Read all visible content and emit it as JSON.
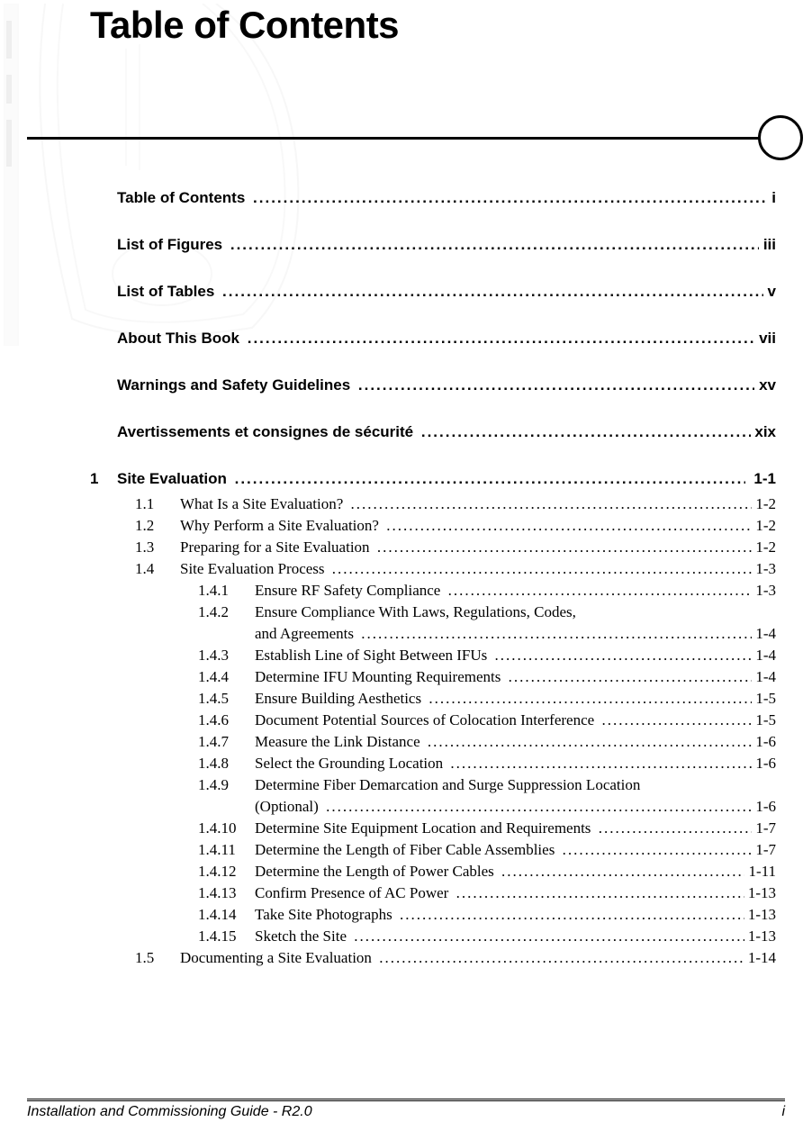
{
  "title": "Table of Contents",
  "front": [
    {
      "label": "Table of Contents",
      "page": "i"
    },
    {
      "label": "List of Figures",
      "page": "iii"
    },
    {
      "label": "List of Tables",
      "page": "v"
    },
    {
      "label": "About This Book",
      "page": "vii"
    },
    {
      "label": "Warnings and Safety Guidelines",
      "page": "xv"
    },
    {
      "label": "Avertissements et consignes de sécurité",
      "page": "xix"
    }
  ],
  "chapter": {
    "num": "1",
    "label": "Site Evaluation",
    "page": "1-1"
  },
  "sections": [
    {
      "num": "1.1",
      "label": "What Is a Site Evaluation?",
      "page": "1-2"
    },
    {
      "num": "1.2",
      "label": "Why Perform a Site Evaluation?",
      "page": "1-2"
    },
    {
      "num": "1.3",
      "label": "Preparing for a Site Evaluation",
      "page": "1-2"
    },
    {
      "num": "1.4",
      "label": "Site Evaluation Process",
      "page": "1-3"
    }
  ],
  "subsections": [
    {
      "num": "1.4.1",
      "label": "Ensure RF Safety Compliance",
      "page": "1-3"
    },
    {
      "num": "1.4.2",
      "label": "Ensure Compliance With Laws, Regulations, Codes,",
      "cont": "and Agreements",
      "page": "1-4"
    },
    {
      "num": "1.4.3",
      "label": "Establish Line of Sight Between IFUs",
      "page": "1-4"
    },
    {
      "num": "1.4.4",
      "label": "Determine IFU Mounting Requirements",
      "page": "1-4"
    },
    {
      "num": "1.4.5",
      "label": "Ensure Building Aesthetics",
      "page": "1-5"
    },
    {
      "num": "1.4.6",
      "label": "Document Potential Sources of Colocation Interference",
      "page": "1-5"
    },
    {
      "num": "1.4.7",
      "label": "Measure the Link Distance",
      "page": "1-6"
    },
    {
      "num": "1.4.8",
      "label": "Select the Grounding Location",
      "page": "1-6"
    },
    {
      "num": "1.4.9",
      "label": "Determine Fiber Demarcation and Surge Suppression Location",
      "cont": "(Optional)",
      "page": "1-6"
    },
    {
      "num": "1.4.10",
      "label": "Determine Site Equipment Location and Requirements",
      "page": "1-7"
    },
    {
      "num": "1.4.11",
      "label": "Determine the Length of Fiber Cable Assemblies",
      "page": "1-7"
    },
    {
      "num": "1.4.12",
      "label": "Determine the Length of Power Cables",
      "page": "1-11"
    },
    {
      "num": "1.4.13",
      "label": "Confirm Presence of AC Power",
      "page": "1-13"
    },
    {
      "num": "1.4.14",
      "label": "Take Site Photographs",
      "page": "1-13"
    },
    {
      "num": "1.4.15",
      "label": "Sketch the Site",
      "page": "1-13"
    }
  ],
  "sections_after": [
    {
      "num": "1.5",
      "label": "Documenting a Site Evaluation",
      "page": "1-14"
    }
  ],
  "footer": {
    "left": "Installation and Commissioning Guide - R2.0",
    "right": "i"
  },
  "colors": {
    "background": "#ffffff",
    "text": "#000000",
    "graphic": "#4a4a4a"
  }
}
